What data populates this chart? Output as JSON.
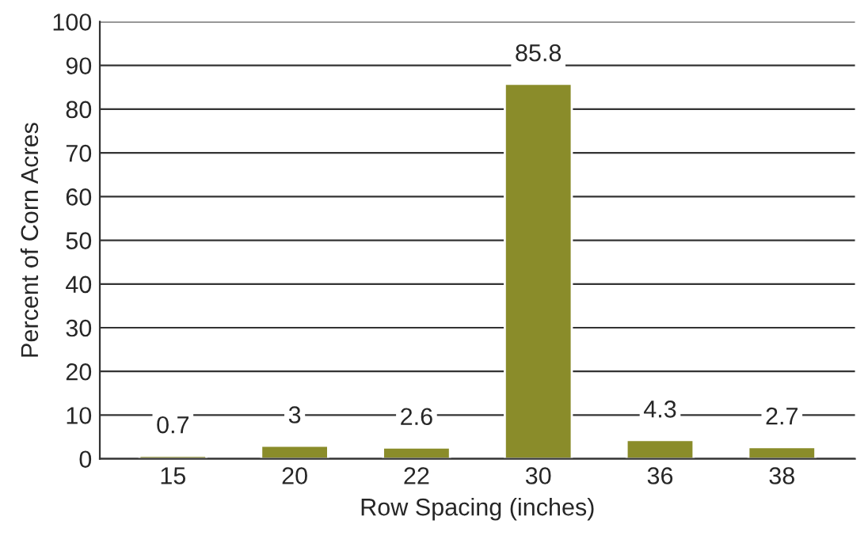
{
  "chart_data": {
    "type": "bar",
    "xlabel": "Row Spacing (inches)",
    "ylabel": "Percent of Corn Acres",
    "categories": [
      "15",
      "20",
      "22",
      "30",
      "36",
      "38"
    ],
    "values": [
      0.7,
      3,
      2.6,
      85.8,
      4.3,
      2.7
    ],
    "color": "#8a8c2a",
    "ylim": [
      0,
      100
    ],
    "yticks": [
      0,
      10,
      20,
      30,
      40,
      50,
      60,
      70,
      80,
      90,
      100
    ],
    "grid": "y",
    "data_labels": true
  }
}
